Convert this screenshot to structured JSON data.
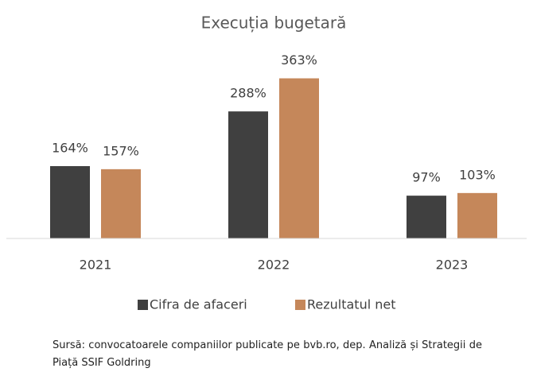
{
  "chart_data": {
    "type": "bar",
    "title": "Execuția bugetară",
    "categories": [
      "2021",
      "2022",
      "2023"
    ],
    "series": [
      {
        "name": "Cifra de afaceri",
        "color": "#404040",
        "values": [
          164,
          288,
          97
        ],
        "value_labels": [
          "164%",
          "288%",
          "97%"
        ]
      },
      {
        "name": "Rezultatul net",
        "color": "#c5875a",
        "values": [
          157,
          363,
          103
        ],
        "value_labels": [
          "157%",
          "363%",
          "103%"
        ]
      }
    ],
    "ylim": [
      0,
      400
    ],
    "legend": "bottom",
    "source": "Sursă: convocatoarele companiilor publicate pe bvb.ro, dep. Analiză și Strategii de Piață SSIF Goldring"
  }
}
